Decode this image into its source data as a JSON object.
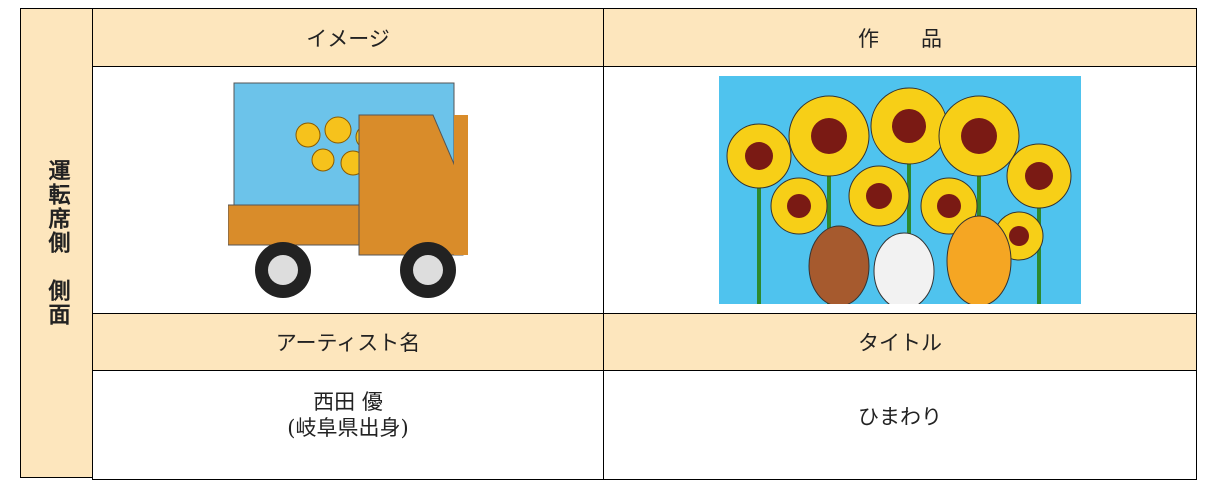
{
  "table": {
    "side_label": "運転席側　側面",
    "header": [
      "イメージ",
      "作　　品"
    ],
    "subheader": [
      "アーティスト名",
      "タイトル"
    ],
    "artist": {
      "name": "西田 優",
      "origin": "(岐阜県出身)"
    },
    "title": "ひまわり"
  }
}
